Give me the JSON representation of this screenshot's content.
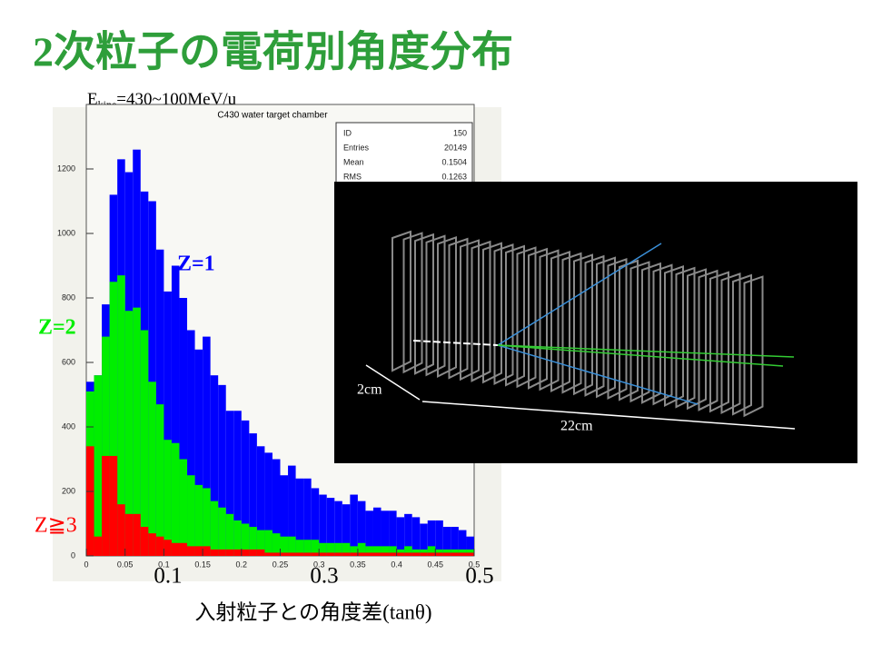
{
  "slide": {
    "title": "2次粒子の電荷別角度分布",
    "energy": {
      "prefix": "E",
      "subscript": "kine",
      "suffix": "=430~100MeV/u"
    },
    "x_label": "入射粒子との角度差(tanθ)",
    "big_ticks": [
      "0.1",
      "0.3",
      "0.5"
    ],
    "inset_labels": [
      "2cm",
      "22cm"
    ]
  },
  "chart_data": {
    "type": "histogram",
    "title": "C430 water target chamber",
    "stats": [
      [
        "ID",
        "150"
      ],
      [
        "Entries",
        "20149"
      ],
      [
        "Mean",
        "0.1504"
      ],
      [
        "RMS",
        "0.1263"
      ]
    ],
    "bins": [
      0,
      0.01,
      0.02,
      0.03,
      0.04,
      0.05,
      0.06,
      0.07,
      0.08,
      0.09,
      0.1,
      0.11,
      0.12,
      0.13,
      0.14,
      0.15,
      0.16,
      0.17,
      0.18,
      0.19,
      0.2,
      0.21,
      0.22,
      0.23,
      0.24,
      0.25,
      0.26,
      0.27,
      0.28,
      0.29,
      0.3,
      0.31,
      0.32,
      0.33,
      0.34,
      0.35,
      0.36,
      0.37,
      0.38,
      0.39,
      0.4,
      0.41,
      0.42,
      0.43,
      0.44,
      0.45,
      0.46,
      0.47,
      0.48,
      0.49,
      0.5
    ],
    "series": [
      {
        "name": "Z=1",
        "color": "#0000ff",
        "values": [
          540,
          560,
          780,
          1120,
          1230,
          1190,
          1260,
          1130,
          1100,
          950,
          820,
          900,
          800,
          700,
          640,
          680,
          560,
          530,
          450,
          450,
          420,
          380,
          340,
          320,
          300,
          250,
          280,
          240,
          240,
          210,
          190,
          180,
          170,
          160,
          190,
          170,
          140,
          150,
          140,
          140,
          120,
          130,
          120,
          100,
          110,
          110,
          90,
          90,
          80,
          60
        ]
      },
      {
        "name": "Z=2",
        "color": "#00ee00",
        "values": [
          510,
          560,
          680,
          850,
          870,
          760,
          770,
          700,
          540,
          470,
          360,
          350,
          300,
          250,
          220,
          210,
          170,
          150,
          130,
          110,
          100,
          90,
          80,
          80,
          70,
          60,
          60,
          50,
          50,
          50,
          40,
          40,
          40,
          40,
          30,
          40,
          30,
          30,
          30,
          30,
          20,
          30,
          20,
          20,
          30,
          20,
          20,
          20,
          20,
          20
        ]
      },
      {
        "name": "Z≧3",
        "color": "#ff0000",
        "values": [
          340,
          60,
          310,
          310,
          160,
          130,
          130,
          90,
          70,
          60,
          50,
          40,
          40,
          30,
          30,
          30,
          20,
          20,
          20,
          20,
          20,
          20,
          20,
          10,
          10,
          10,
          10,
          10,
          10,
          10,
          10,
          10,
          10,
          10,
          10,
          10,
          10,
          10,
          10,
          10,
          10,
          10,
          10,
          10,
          10,
          10,
          10,
          10,
          10,
          10
        ]
      }
    ],
    "xlim": [
      0,
      0.5
    ],
    "xticks": [
      0,
      0.05,
      0.1,
      0.15,
      0.2,
      0.25,
      0.3,
      0.35,
      0.4,
      0.45,
      0.5
    ],
    "ylim": [
      0,
      1400
    ],
    "yticks": [
      0,
      200,
      400,
      600,
      800,
      1000,
      1200
    ]
  }
}
